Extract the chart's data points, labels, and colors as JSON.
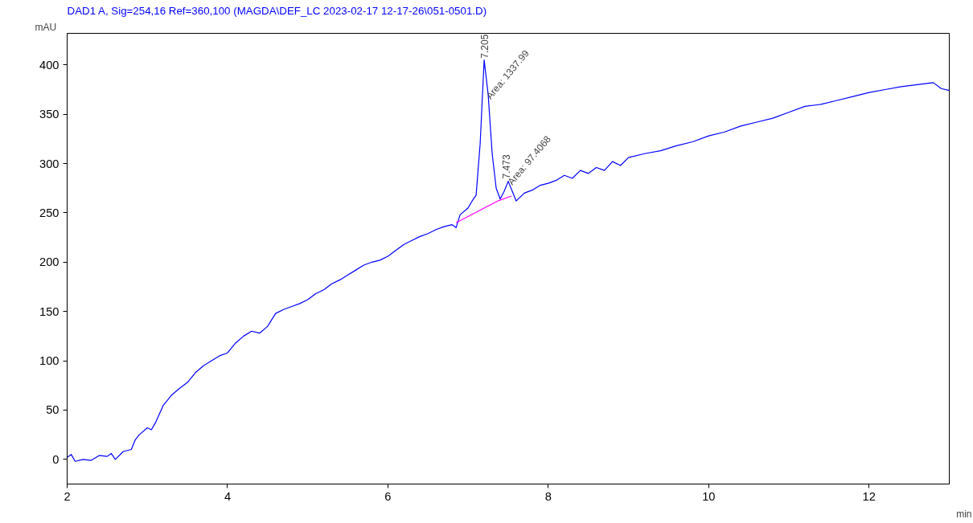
{
  "chart_data": {
    "type": "line",
    "title": "DAD1 A, Sig=254,16 Ref=360,100 (MAGDA\\DEF_LC 2023-02-17 12-17-26\\051-0501.D)",
    "xlabel": "min",
    "ylabel": "mAU",
    "xlim": [
      2,
      13
    ],
    "ylim": [
      -25,
      432
    ],
    "xticks": [
      2,
      4,
      6,
      8,
      10,
      12
    ],
    "yticks": [
      0,
      50,
      100,
      150,
      200,
      250,
      300,
      350,
      400
    ],
    "grid": false,
    "series": [
      {
        "color": "#0000ff",
        "x": [
          2.0,
          2.05,
          2.1,
          2.2,
          2.3,
          2.4,
          2.5,
          2.55,
          2.6,
          2.7,
          2.8,
          2.85,
          2.9,
          3.0,
          3.05,
          3.1,
          3.2,
          3.3,
          3.4,
          3.5,
          3.6,
          3.7,
          3.8,
          3.9,
          4.0,
          4.1,
          4.2,
          4.3,
          4.4,
          4.5,
          4.6,
          4.7,
          4.8,
          4.9,
          5.0,
          5.1,
          5.2,
          5.3,
          5.4,
          5.5,
          5.6,
          5.7,
          5.8,
          5.9,
          6.0,
          6.1,
          6.2,
          6.3,
          6.4,
          6.5,
          6.6,
          6.7,
          6.8,
          6.85,
          6.9,
          7.0,
          7.05,
          7.1,
          7.15,
          7.2,
          7.25,
          7.3,
          7.35,
          7.4,
          7.45,
          7.5,
          7.55,
          7.6,
          7.7,
          7.8,
          7.9,
          8.0,
          8.1,
          8.2,
          8.3,
          8.4,
          8.5,
          8.6,
          8.7,
          8.8,
          8.9,
          9.0,
          9.2,
          9.4,
          9.6,
          9.8,
          10.0,
          10.2,
          10.4,
          10.6,
          10.8,
          11.0,
          11.2,
          11.4,
          11.6,
          11.8,
          12.0,
          12.2,
          12.4,
          12.6,
          12.8,
          12.9,
          13.0
        ],
        "values": [
          2,
          5,
          -2,
          0,
          -1,
          4,
          3,
          6,
          0,
          8,
          10,
          20,
          25,
          32,
          30,
          37,
          55,
          65,
          72,
          78,
          88,
          95,
          100,
          105,
          108,
          118,
          125,
          130,
          128,
          135,
          148,
          152,
          155,
          158,
          162,
          168,
          172,
          178,
          182,
          187,
          192,
          197,
          200,
          202,
          206,
          212,
          218,
          222,
          226,
          229,
          233,
          236,
          238,
          235,
          248,
          255,
          262,
          268,
          320,
          405,
          370,
          310,
          275,
          264,
          272,
          282,
          272,
          262,
          270,
          273,
          278,
          280,
          283,
          288,
          285,
          293,
          290,
          296,
          293,
          302,
          298,
          306,
          310,
          313,
          318,
          322,
          328,
          332,
          338,
          342,
          346,
          352,
          358,
          360,
          364,
          368,
          372,
          375,
          378,
          380,
          382,
          376,
          374
        ]
      },
      {
        "color": "#ff00ff",
        "x": [
          6.85,
          7.37,
          7.54
        ],
        "values": [
          240,
          262,
          267
        ]
      }
    ],
    "annotations": [
      {
        "text": "7.205",
        "x": 7.205,
        "y": 405
      },
      {
        "text": "Area: 1337.99",
        "x": 7.25,
        "y": 365
      },
      {
        "text": "7.473",
        "x": 7.473,
        "y": 283
      },
      {
        "text": "Area: 97.4068",
        "x": 7.52,
        "y": 278
      }
    ]
  }
}
